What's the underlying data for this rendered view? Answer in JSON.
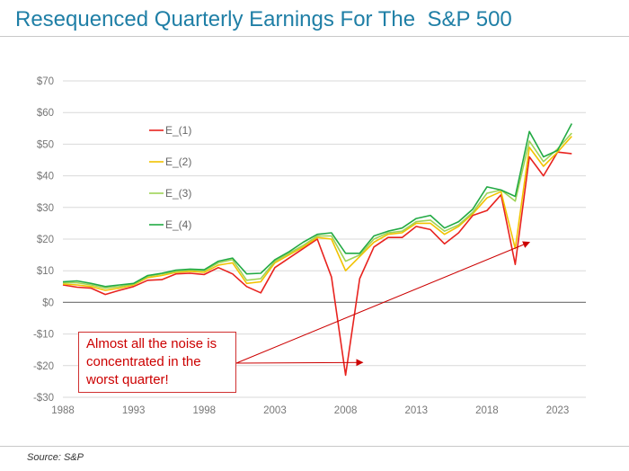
{
  "header": {
    "title": "Resequenced Quarterly Earnings For The  S&P 500"
  },
  "footer": {
    "source": "Source: S&P"
  },
  "chart_data": {
    "type": "line",
    "title": "Resequenced Quarterly Earnings For The  S&P 500",
    "xlabel": "",
    "ylabel": "",
    "xlim": [
      1988,
      2025
    ],
    "ylim": [
      -30,
      70
    ],
    "x_ticks": [
      1988,
      1993,
      1998,
      2003,
      2008,
      2013,
      2018,
      2023
    ],
    "x_tick_labels": [
      "1988",
      "1993",
      "1998",
      "2003",
      "2008",
      "2013",
      "2018",
      "2023"
    ],
    "y_ticks": [
      -30,
      -20,
      -10,
      0,
      10,
      20,
      30,
      40,
      50,
      60,
      70
    ],
    "y_tick_labels": [
      "-$30",
      "-$20",
      "-$10",
      "$0",
      "$10",
      "$20",
      "$30",
      "$40",
      "$50",
      "$60",
      "$70"
    ],
    "gridlines": "horizontal",
    "legend_position": "upper-left",
    "x": [
      1988,
      1989,
      1990,
      1991,
      1992,
      1993,
      1994,
      1995,
      1996,
      1997,
      1998,
      1999,
      2000,
      2001,
      2002,
      2003,
      2004,
      2005,
      2006,
      2007,
      2008,
      2009,
      2010,
      2011,
      2012,
      2013,
      2014,
      2015,
      2016,
      2017,
      2018,
      2019,
      2020,
      2021,
      2022,
      2023,
      2024
    ],
    "series": [
      {
        "name": "E_(1)",
        "color": "#e8231f",
        "values": [
          5.5,
          4.8,
          4.5,
          2.5,
          3.8,
          5.0,
          7.0,
          7.2,
          9.0,
          9.2,
          8.8,
          11.0,
          9.0,
          5.0,
          3.0,
          11.0,
          14.0,
          17.0,
          20.0,
          8.0,
          -23.0,
          7.5,
          17.5,
          20.5,
          20.5,
          24.0,
          23.0,
          18.5,
          22.0,
          27.5,
          29.0,
          34.0,
          12.0,
          46.0,
          40.0,
          47.5,
          47.0
        ]
      },
      {
        "name": "E_(2)",
        "color": "#f2c200",
        "values": [
          5.8,
          5.5,
          5.0,
          3.8,
          4.5,
          5.5,
          7.8,
          8.5,
          9.5,
          9.8,
          9.5,
          11.8,
          12.5,
          6.0,
          6.5,
          12.5,
          15.0,
          17.5,
          20.5,
          20.0,
          10.0,
          14.5,
          19.0,
          21.5,
          22.0,
          25.0,
          25.0,
          21.5,
          24.0,
          28.0,
          33.0,
          35.0,
          17.0,
          49.0,
          43.0,
          47.5,
          52.5
        ]
      },
      {
        "name": "E_(3)",
        "color": "#9fd356",
        "values": [
          6.2,
          6.2,
          5.5,
          4.5,
          5.0,
          5.8,
          8.2,
          9.0,
          9.8,
          10.2,
          10.0,
          12.5,
          13.5,
          7.0,
          7.5,
          13.0,
          15.5,
          18.0,
          21.0,
          21.0,
          13.0,
          15.0,
          20.0,
          22.0,
          22.5,
          25.5,
          26.0,
          22.5,
          24.5,
          28.5,
          34.5,
          35.5,
          32.0,
          51.0,
          44.5,
          48.5,
          53.5
        ]
      },
      {
        "name": "E_(4)",
        "color": "#22aa44",
        "values": [
          6.5,
          6.8,
          6.0,
          5.0,
          5.5,
          6.0,
          8.5,
          9.2,
          10.2,
          10.5,
          10.3,
          13.0,
          14.0,
          9.0,
          9.2,
          13.5,
          16.0,
          19.0,
          21.5,
          22.0,
          15.5,
          15.5,
          21.0,
          22.5,
          23.5,
          26.5,
          27.5,
          23.5,
          25.5,
          29.5,
          36.5,
          35.5,
          33.5,
          54.0,
          46.0,
          48.0,
          56.5
        ]
      }
    ],
    "annotations": [
      {
        "text_lines": [
          "Almost all the noise is",
          "concentrated in the",
          "worst quarter!"
        ],
        "arrows_to": [
          [
            2009.2,
            -19.0
          ],
          [
            2021.0,
            19.0
          ]
        ]
      }
    ]
  }
}
